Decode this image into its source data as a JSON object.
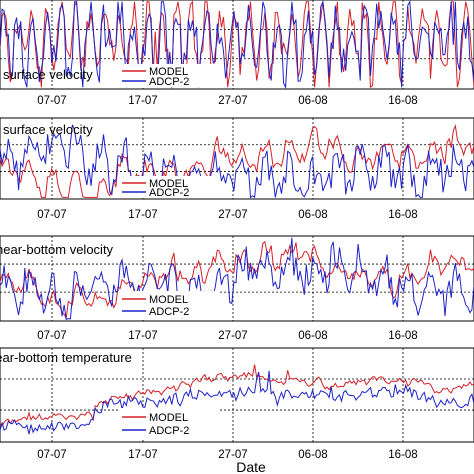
{
  "chart_data": {
    "type": "line",
    "xlabel": "Date",
    "x_ticks": [
      "07-07",
      "17-07",
      "27-07",
      "06-08",
      "16-08"
    ],
    "grid": true,
    "panels": [
      {
        "title": "surface velocity",
        "legend": {
          "placement": "bottom-center",
          "entries": [
            "MODEL",
            "ADCP-2"
          ]
        },
        "series": [
          {
            "name": "MODEL",
            "color": "#d62027",
            "style": "spiky",
            "base": 0.55,
            "amp": 0.38,
            "noise": 0.22,
            "seed": 11
          },
          {
            "name": "ADCP-2",
            "color": "#1f22c8",
            "style": "spiky",
            "base": 0.55,
            "amp": 0.3,
            "noise": 0.25,
            "seed": 23
          }
        ]
      },
      {
        "title": "surface velocity",
        "legend": {
          "placement": "bottom-center",
          "entries": [
            "MODEL",
            "ADCP-2"
          ]
        },
        "series": [
          {
            "name": "MODEL",
            "color": "#d62027",
            "style": "oscillating",
            "base": 0.5,
            "amp": 0.22,
            "noise": 0.1,
            "seed": 37
          },
          {
            "name": "ADCP-2",
            "color": "#1f22c8",
            "style": "oscillating",
            "base": 0.45,
            "amp": 0.3,
            "noise": 0.2,
            "seed": 41
          }
        ]
      },
      {
        "title": "near-bottom velocity",
        "legend": {
          "placement": "bottom-center",
          "entries": [
            "MODEL",
            "ADCP-2"
          ]
        },
        "series": [
          {
            "name": "MODEL",
            "color": "#d62027",
            "style": "oscillating",
            "base": 0.55,
            "amp": 0.15,
            "noise": 0.08,
            "seed": 53
          },
          {
            "name": "ADCP-2",
            "color": "#1f22c8",
            "style": "oscillating",
            "base": 0.5,
            "amp": 0.25,
            "noise": 0.18,
            "seed": 67
          }
        ]
      },
      {
        "title": "near-bottom temperature",
        "legend": {
          "placement": "bottom-center",
          "entries": [
            "MODEL",
            "ADCP-2"
          ]
        },
        "series": [
          {
            "name": "MODEL",
            "color": "#d62027",
            "style": "trend",
            "base": 0.35,
            "amp": 0.1,
            "noise": 0.05,
            "seed": 71
          },
          {
            "name": "ADCP-2",
            "color": "#1f22c8",
            "style": "trend",
            "base": 0.3,
            "amp": 0.2,
            "noise": 0.12,
            "seed": 89
          }
        ]
      }
    ]
  }
}
